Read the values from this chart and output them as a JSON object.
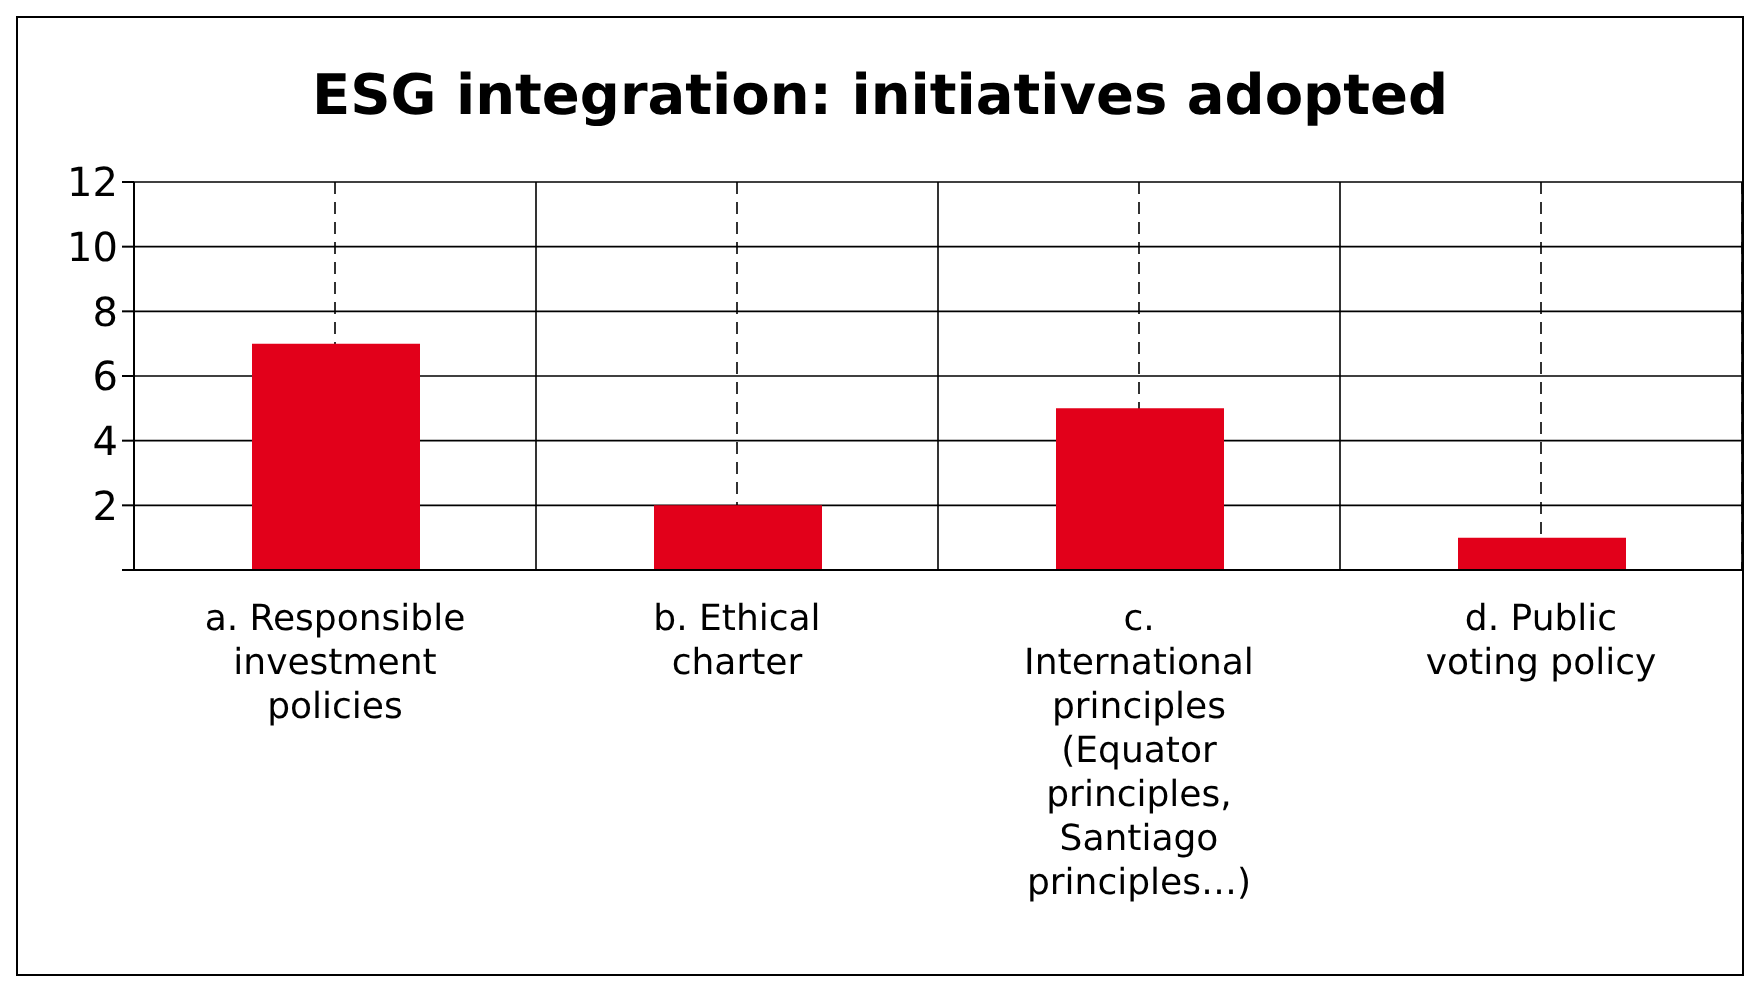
{
  "chart_data": {
    "type": "bar",
    "title": "ESG integration: initiatives adopted",
    "categories": [
      "a. Responsible investment policies",
      "b. Ethical charter",
      "c. International principles (Equator principles, Santiago principles…)",
      "d. Public voting policy"
    ],
    "values": [
      7,
      2,
      5,
      1
    ],
    "color": "#e2001a",
    "ylim": [
      0,
      12
    ],
    "yticks": [
      {
        "value": 0,
        "label": null
      },
      2,
      4,
      6,
      8,
      10,
      12
    ],
    "grid": true
  }
}
